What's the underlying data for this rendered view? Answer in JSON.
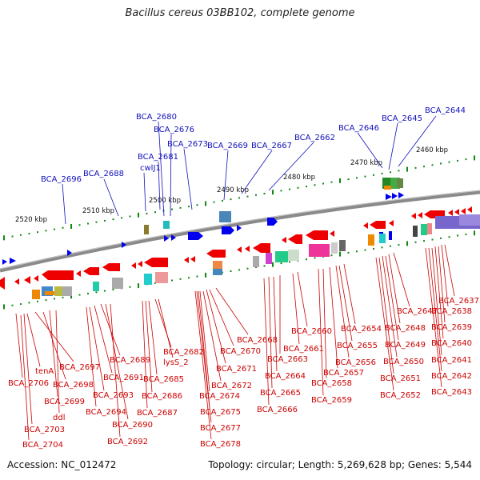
{
  "title": "Bacillus cereus 03BB102, complete genome",
  "footer": {
    "accession": "Accession: NC_012472",
    "summary": "Topology: circular; Length: 5,269,628 bp; Genes: 5,544"
  },
  "colors": {
    "top_label": "#1111bb",
    "bottom_label": "#cc0000",
    "forward_gene": "#0000ee",
    "reverse_gene": "#ee0000",
    "backbone": "#888888",
    "tick": "#118811"
  },
  "kbp_ticks": [
    "2520 kbp",
    "2510 kbp",
    "2500 kbp",
    "2490 kbp",
    "2480 kbp",
    "2470 kbp",
    "2460 kbp"
  ],
  "top_labels": [
    "BCA_2680",
    "BCA_2676",
    "BCA_2673",
    "BCA_2669",
    "BCA_2667",
    "BCA_2662",
    "BCA_2646",
    "BCA_2645",
    "BCA_2644",
    "BCA_2681",
    "cwlJ1",
    "BCA_2688",
    "BCA_2696"
  ],
  "bottom_labels": [
    "BCA_2706",
    "tenA",
    "BCA_2697",
    "BCA_2698",
    "BCA_2699",
    "ddl",
    "BCA_2703",
    "BCA_2704",
    "BCA_2689",
    "BCA_2691",
    "BCA_2693",
    "BCA_2694",
    "BCA_2690",
    "BCA_2692",
    "BCA_2682",
    "lysS_2",
    "BCA_2685",
    "BCA_2686",
    "BCA_2687",
    "BCA_2668",
    "BCA_2670",
    "BCA_2671",
    "BCA_2672",
    "BCA_2674",
    "BCA_2675",
    "BCA_2677",
    "BCA_2678",
    "BCA_2660",
    "BCA_2661",
    "BCA_2663",
    "BCA_2664",
    "BCA_2665",
    "BCA_2666",
    "BCA_2654",
    "BCA_2655",
    "BCA_2656",
    "BCA_2657",
    "BCA_2658",
    "BCA_2659",
    "BCA_2647",
    "BCA_2648",
    "BCA_2649",
    "BCA_2650",
    "BCA_2651",
    "BCA_2652",
    "BCA_2637",
    "BCA_2638",
    "BCA_2639",
    "BCA_2640",
    "BCA_2641",
    "BCA_2642",
    "BCA_2643"
  ]
}
